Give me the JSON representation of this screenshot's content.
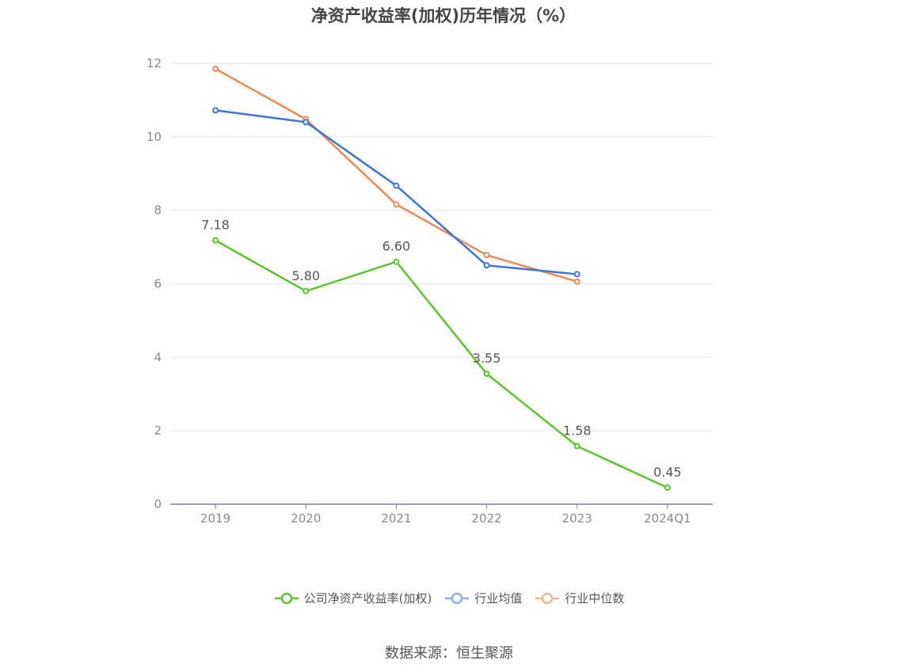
{
  "chart_data": {
    "type": "line",
    "title": "净资产收益率(加权)历年情况（%）",
    "categories": [
      "2019",
      "2020",
      "2021",
      "2022",
      "2023",
      "2024Q1"
    ],
    "ylim": [
      0,
      12
    ],
    "yticks": [
      0,
      2,
      4,
      6,
      8,
      10,
      12
    ],
    "grid": true,
    "legend_position": "bottom",
    "series": [
      {
        "name": "公司净资产收益率(加权)",
        "color": "#5cc52b",
        "show_labels": true,
        "values": [
          7.18,
          5.8,
          6.6,
          3.55,
          1.58,
          0.45
        ]
      },
      {
        "name": "行业均值",
        "color": "#3b73dd",
        "legend_color": "#8fb0ea",
        "show_labels": false,
        "values": [
          10.72,
          10.4,
          8.67,
          6.5,
          6.26,
          null
        ]
      },
      {
        "name": "行业中位数",
        "color": "#f0884f",
        "legend_color": "#f6b694",
        "show_labels": false,
        "values": [
          11.85,
          10.48,
          8.16,
          6.78,
          6.06,
          null
        ]
      }
    ]
  },
  "source": "数据来源：恒生聚源"
}
